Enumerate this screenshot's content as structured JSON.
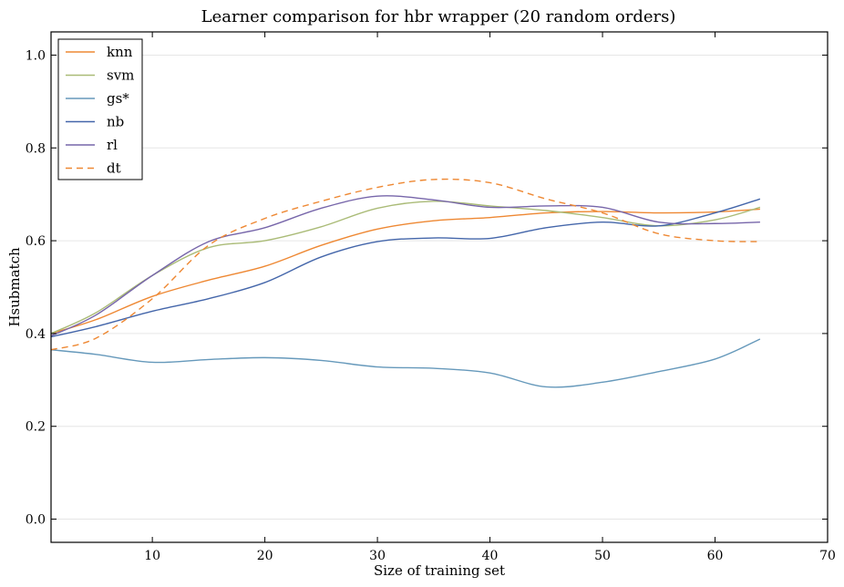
{
  "chart_data": {
    "type": "line",
    "title": "Learner comparison for hbr wrapper (20 random orders)",
    "xlabel": "Size of training set",
    "ylabel": "Hsubmatch",
    "xlim": [
      1,
      70
    ],
    "ylim": [
      -0.05,
      1.05
    ],
    "xticks": [
      10,
      20,
      30,
      40,
      50,
      60,
      70
    ],
    "yticks": [
      0.0,
      0.2,
      0.4,
      0.6,
      0.8,
      1.0
    ],
    "yticklabels": [
      "0.0",
      "0.2",
      "0.4",
      "0.6",
      "0.8",
      "1.0"
    ],
    "grid": "horizontal",
    "legend_position": "top-left",
    "series": [
      {
        "name": "knn",
        "color": "#ee8833",
        "dash": "solid",
        "x": [
          1,
          5,
          10,
          15,
          20,
          25,
          30,
          35,
          40,
          45,
          50,
          55,
          60,
          64
        ],
        "y": [
          0.4,
          0.43,
          0.48,
          0.515,
          0.545,
          0.59,
          0.625,
          0.643,
          0.65,
          0.66,
          0.663,
          0.66,
          0.662,
          0.668
        ]
      },
      {
        "name": "svm",
        "color": "#aabb77",
        "dash": "solid",
        "x": [
          1,
          5,
          10,
          15,
          20,
          25,
          30,
          35,
          40,
          45,
          50,
          55,
          60,
          64
        ],
        "y": [
          0.4,
          0.445,
          0.525,
          0.585,
          0.6,
          0.63,
          0.67,
          0.685,
          0.675,
          0.665,
          0.65,
          0.632,
          0.645,
          0.672
        ]
      },
      {
        "name": "gs*",
        "color": "#6699bb",
        "dash": "solid",
        "x": [
          1,
          5,
          10,
          15,
          20,
          25,
          30,
          35,
          40,
          45,
          50,
          55,
          60,
          64
        ],
        "y": [
          0.365,
          0.355,
          0.338,
          0.344,
          0.348,
          0.342,
          0.328,
          0.325,
          0.315,
          0.285,
          0.295,
          0.318,
          0.345,
          0.388
        ]
      },
      {
        "name": "nb",
        "color": "#4466aa",
        "dash": "solid",
        "x": [
          1,
          5,
          10,
          15,
          20,
          25,
          30,
          35,
          40,
          45,
          50,
          55,
          60,
          64
        ],
        "y": [
          0.393,
          0.415,
          0.448,
          0.475,
          0.51,
          0.565,
          0.598,
          0.606,
          0.605,
          0.628,
          0.64,
          0.632,
          0.66,
          0.69
        ]
      },
      {
        "name": "rl",
        "color": "#7766aa",
        "dash": "solid",
        "x": [
          1,
          5,
          10,
          15,
          20,
          25,
          30,
          35,
          40,
          45,
          50,
          55,
          60,
          64
        ],
        "y": [
          0.395,
          0.44,
          0.525,
          0.598,
          0.628,
          0.67,
          0.696,
          0.688,
          0.672,
          0.675,
          0.672,
          0.64,
          0.637,
          0.64
        ]
      },
      {
        "name": "dt",
        "color": "#ee8833",
        "dash": "dashed",
        "x": [
          1,
          5,
          10,
          15,
          20,
          25,
          30,
          35,
          40,
          45,
          50,
          55,
          60,
          64
        ],
        "y": [
          0.365,
          0.39,
          0.475,
          0.59,
          0.648,
          0.685,
          0.715,
          0.732,
          0.725,
          0.69,
          0.66,
          0.615,
          0.6,
          0.598
        ]
      }
    ]
  }
}
